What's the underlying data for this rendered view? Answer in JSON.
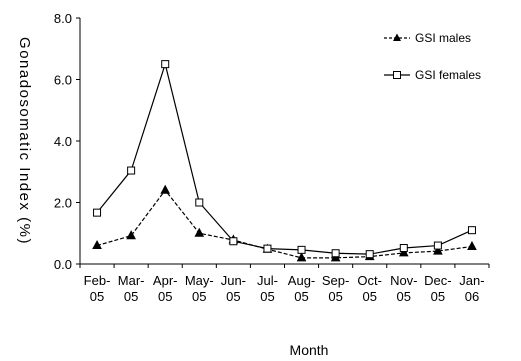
{
  "chart_data": {
    "type": "line",
    "title": "",
    "xlabel": "Month",
    "ylabel": "Gonadosomatic Index (%)",
    "ylim": [
      0,
      8
    ],
    "yticks": [
      "0.0",
      "2.0",
      "4.0",
      "6.0",
      "8.0"
    ],
    "categories": [
      [
        "Feb-",
        "05"
      ],
      [
        "Mar-",
        "05"
      ],
      [
        "Apr-",
        "05"
      ],
      [
        "May-",
        "05"
      ],
      [
        "Jun-",
        "05"
      ],
      [
        "Jul-",
        "05"
      ],
      [
        "Aug-",
        "05"
      ],
      [
        "Sep-",
        "05"
      ],
      [
        "Oct-",
        "05"
      ],
      [
        "Nov-",
        "05"
      ],
      [
        "Dec-",
        "05"
      ],
      [
        "Jan-",
        "06"
      ]
    ],
    "grid": false,
    "legend_position": "top-right",
    "series": [
      {
        "name": "GSI males",
        "marker": "triangle-filled",
        "line_style": "dashed",
        "values": [
          0.6,
          0.92,
          2.4,
          1.0,
          0.78,
          0.48,
          0.2,
          0.2,
          0.24,
          0.36,
          0.42,
          0.57
        ]
      },
      {
        "name": "GSI females",
        "marker": "square-open",
        "line_style": "solid",
        "values": [
          1.67,
          3.04,
          6.5,
          2.0,
          0.74,
          0.5,
          0.46,
          0.35,
          0.32,
          0.52,
          0.6,
          1.1
        ]
      }
    ]
  }
}
